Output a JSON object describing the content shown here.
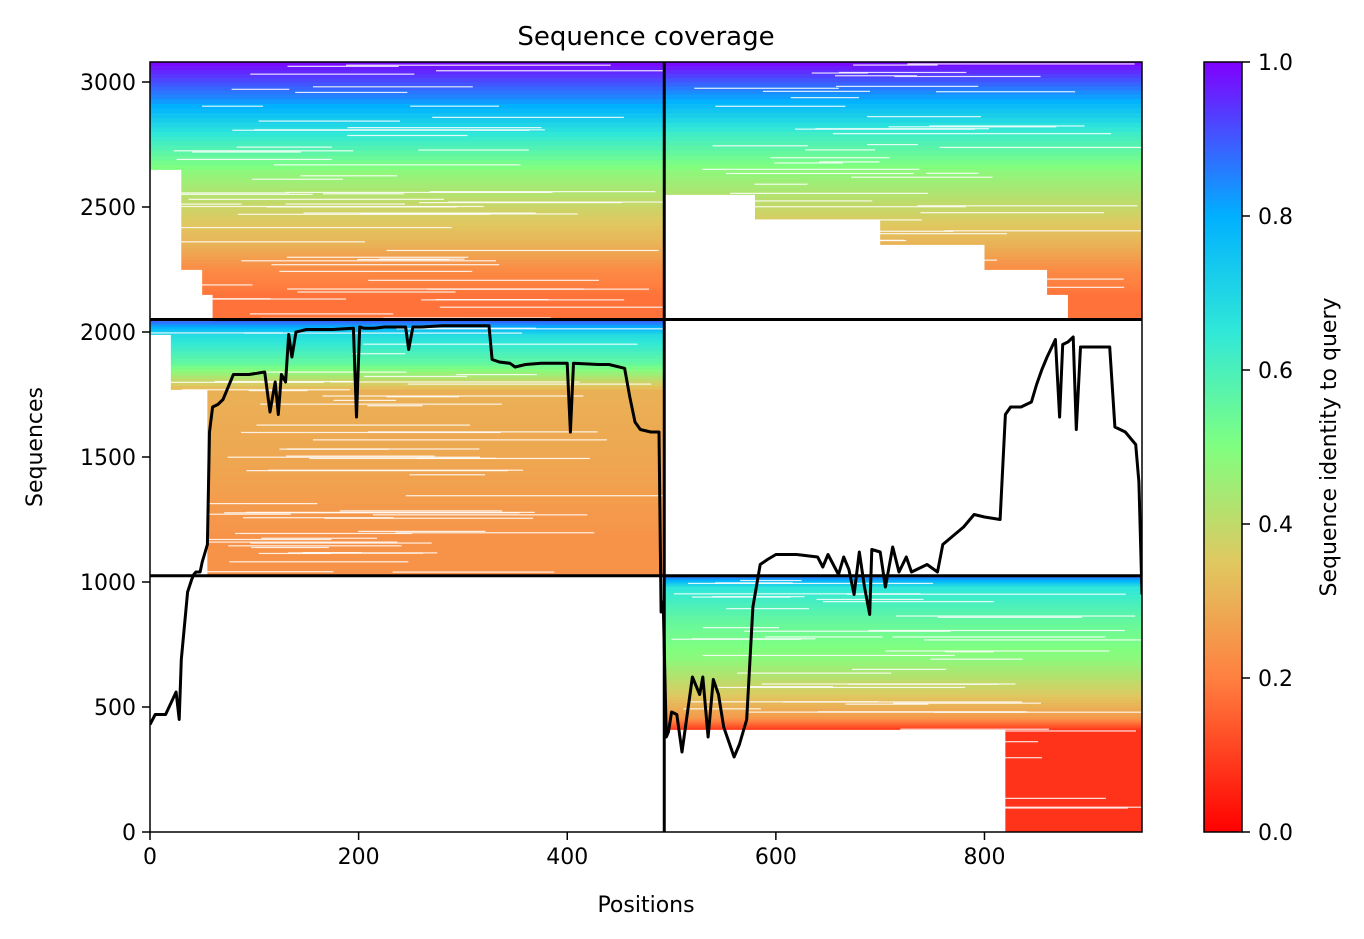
{
  "chart_data": {
    "type": "heatmap",
    "title": "Sequence coverage",
    "xlabel": "Positions",
    "ylabel": "Sequences",
    "xlim": [
      0,
      951
    ],
    "ylim": [
      0,
      3080
    ],
    "x_ticks": [
      0,
      200,
      400,
      600,
      800
    ],
    "y_ticks": [
      0,
      500,
      1000,
      1500,
      2000,
      2500,
      3000
    ],
    "colorbar": {
      "label": "Sequence identity to query",
      "range": [
        0.0,
        1.0
      ],
      "ticks": [
        0.0,
        0.2,
        0.4,
        0.6,
        0.8,
        1.0
      ],
      "colormap": [
        "#ff0000",
        "#ff8040",
        "#e0c860",
        "#80ff80",
        "#00b0ff",
        "#8000ff"
      ]
    },
    "chain_boundaries": {
      "x": [
        493
      ],
      "y": [
        1025,
        2050
      ]
    },
    "blocks": [
      {
        "name": "top-left",
        "x": [
          0,
          493
        ],
        "y": [
          2050,
          3080
        ],
        "rows": [
          {
            "y": 3080,
            "identity": 0.99,
            "x_start": 0
          },
          {
            "y": 2950,
            "identity": 0.85,
            "x_start": 0
          },
          {
            "y": 2800,
            "identity": 0.65,
            "x_start": 0
          },
          {
            "y": 2650,
            "identity": 0.48,
            "x_start": 30
          },
          {
            "y": 2500,
            "identity": 0.38,
            "x_start": 30
          },
          {
            "y": 2350,
            "identity": 0.3,
            "x_start": 30
          },
          {
            "y": 2250,
            "identity": 0.22,
            "x_start": 50
          },
          {
            "y": 2150,
            "identity": 0.18,
            "x_start": 60
          }
        ]
      },
      {
        "name": "top-right",
        "x": [
          493,
          951
        ],
        "y": [
          2050,
          3080
        ],
        "rows": [
          {
            "y": 3080,
            "identity": 0.99,
            "x_start": 493
          },
          {
            "y": 2950,
            "identity": 0.82,
            "x_start": 493
          },
          {
            "y": 2800,
            "identity": 0.62,
            "x_start": 493
          },
          {
            "y": 2650,
            "identity": 0.48,
            "x_start": 493
          },
          {
            "y": 2550,
            "identity": 0.42,
            "x_start": 580
          },
          {
            "y": 2450,
            "identity": 0.36,
            "x_start": 700
          },
          {
            "y": 2350,
            "identity": 0.3,
            "x_start": 800
          },
          {
            "y": 2250,
            "identity": 0.22,
            "x_start": 860
          },
          {
            "y": 2150,
            "identity": 0.18,
            "x_start": 880
          }
        ]
      },
      {
        "name": "middle-left",
        "x": [
          0,
          493
        ],
        "y": [
          1025,
          2050
        ],
        "rows": [
          {
            "y": 2050,
            "identity": 0.9,
            "x_start": 0
          },
          {
            "y": 1990,
            "identity": 0.68,
            "x_start": 20
          },
          {
            "y": 1880,
            "identity": 0.55,
            "x_start": 20
          },
          {
            "y": 1770,
            "identity": 0.3,
            "x_start": 55
          },
          {
            "y": 1500,
            "identity": 0.28,
            "x_start": 55
          },
          {
            "y": 1200,
            "identity": 0.24,
            "x_start": 55
          }
        ]
      },
      {
        "name": "bottom-right",
        "x": [
          493,
          951
        ],
        "y": [
          0,
          1025
        ],
        "rows": [
          {
            "y": 1025,
            "identity": 0.88,
            "x_start": 493
          },
          {
            "y": 980,
            "identity": 0.65,
            "x_start": 493
          },
          {
            "y": 850,
            "identity": 0.55,
            "x_start": 493
          },
          {
            "y": 700,
            "identity": 0.48,
            "x_start": 493
          },
          {
            "y": 550,
            "identity": 0.35,
            "x_start": 493
          },
          {
            "y": 460,
            "identity": 0.25,
            "x_start": 493
          },
          {
            "y": 410,
            "identity": 0.08,
            "x_start": 820
          }
        ]
      }
    ],
    "coverage_line": {
      "x": [
        0,
        5,
        15,
        25,
        28,
        30,
        32,
        36,
        40,
        42,
        44,
        46,
        48,
        50,
        55,
        57,
        60,
        65,
        70,
        80,
        95,
        110,
        115,
        120,
        123,
        126,
        130,
        133,
        136,
        140,
        145,
        150,
        160,
        175,
        195,
        198,
        201,
        205,
        215,
        225,
        235,
        245,
        248,
        252,
        260,
        280,
        300,
        325,
        328,
        335,
        345,
        350,
        360,
        375,
        400,
        403,
        406,
        430,
        440,
        455,
        460,
        465,
        470,
        480,
        488,
        490,
        492,
        495,
        497,
        500,
        505,
        510,
        520,
        527,
        530,
        535,
        540,
        545,
        550,
        555,
        560,
        565,
        572,
        578,
        585,
        592,
        600,
        620,
        640,
        645,
        650,
        660,
        665,
        670,
        675,
        680,
        685,
        690,
        692,
        700,
        705,
        712,
        718,
        725,
        730,
        745,
        755,
        760,
        780,
        790,
        800,
        815,
        820,
        825,
        835,
        845,
        850,
        855,
        860,
        868,
        872,
        875,
        880,
        885,
        888,
        892,
        900,
        920,
        925,
        935,
        945,
        948,
        951
      ],
      "y": [
        430,
        470,
        470,
        560,
        450,
        690,
        780,
        960,
        1010,
        1030,
        1040,
        1040,
        1040,
        1080,
        1150,
        1600,
        1700,
        1710,
        1730,
        1830,
        1830,
        1840,
        1680,
        1800,
        1670,
        1830,
        1800,
        1990,
        1900,
        2000,
        2005,
        2010,
        2010,
        2010,
        2015,
        1660,
        2020,
        2015,
        2015,
        2020,
        2020,
        2020,
        1930,
        2020,
        2020,
        2025,
        2025,
        2025,
        1890,
        1880,
        1875,
        1860,
        1870,
        1875,
        1875,
        1600,
        1875,
        1870,
        1870,
        1855,
        1740,
        1640,
        1610,
        1600,
        1600,
        880,
        920,
        380,
        400,
        480,
        470,
        320,
        620,
        550,
        620,
        380,
        610,
        550,
        420,
        360,
        300,
        350,
        450,
        900,
        1070,
        1090,
        1110,
        1110,
        1100,
        1060,
        1110,
        1030,
        1100,
        1050,
        950,
        1120,
        980,
        870,
        1130,
        1120,
        980,
        1140,
        1040,
        1100,
        1040,
        1070,
        1040,
        1150,
        1220,
        1270,
        1260,
        1250,
        1670,
        1700,
        1700,
        1720,
        1790,
        1850,
        1900,
        1970,
        1660,
        1950,
        1960,
        1980,
        1610,
        1940,
        1940,
        1940,
        1620,
        1600,
        1550,
        1400,
        950
      ]
    }
  }
}
